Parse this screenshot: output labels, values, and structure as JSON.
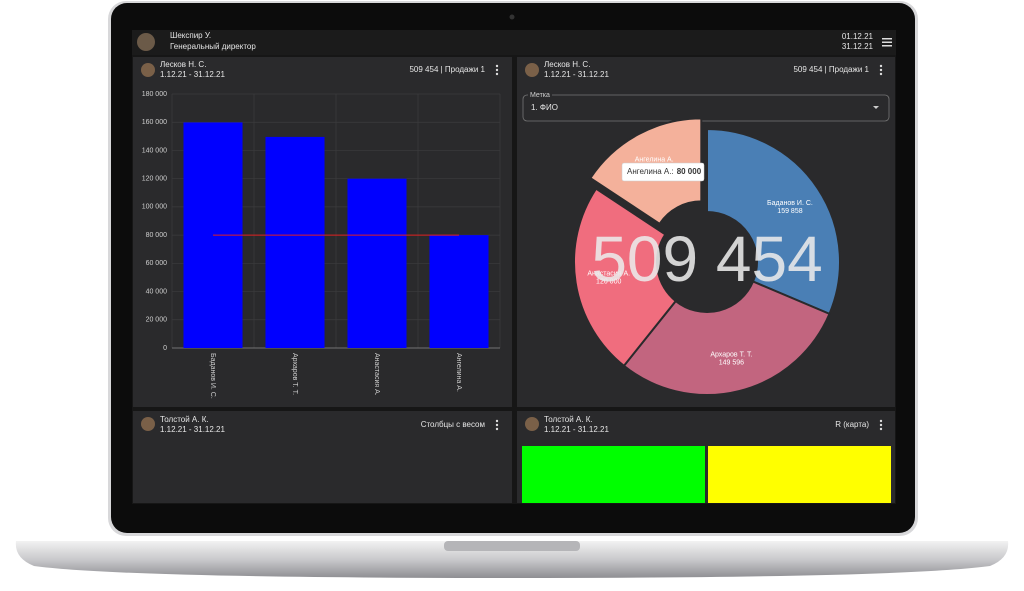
{
  "header": {
    "user": "Шекспир У.",
    "role": "Генеральный директор",
    "date_from": "01.12.21",
    "date_to": "31.12.21"
  },
  "panels": [
    {
      "author": "Лесков Н. С.",
      "period": "1.12.21 - 31.12.21",
      "title": "509 454 | Продажи 1",
      "chart": {
        "type": "bar",
        "categories": [
          "Баданов И. С.",
          "Архаров Т. Т.",
          "Анастасия А.",
          "Ангелина А."
        ],
        "values": [
          159858,
          149596,
          120000,
          80000
        ],
        "color": "#0000ff",
        "reference_line": 80000,
        "reference_color": "#e02020",
        "ylim": [
          0,
          180000
        ],
        "yticks": [
          0,
          {
            "value": 20000,
            "label": "20 000"
          },
          {
            "value": 40000,
            "label": "40 000"
          },
          {
            "value": 60000,
            "label": "60 000"
          },
          {
            "value": 80000,
            "label": "80 000"
          },
          {
            "value": 100000,
            "label": "100 000"
          },
          {
            "value": 120000,
            "label": "120 000"
          },
          {
            "value": 140000,
            "label": "140 000"
          },
          {
            "value": 160000,
            "label": "160 000"
          },
          {
            "value": 180000,
            "label": "180 000"
          }
        ],
        "grid": true
      }
    },
    {
      "author": "Лесков Н. С.",
      "period": "1.12.21 - 31.12.21",
      "title": "509 454 | Продажи 1",
      "select_label": "Метка",
      "select_value": "1. ФИО",
      "chart": {
        "type": "donut",
        "total_label": "509 454",
        "categories": [
          "Баданов И. С.",
          "Архаров Т. Т.",
          "Анастасия А.",
          "Ангелина А."
        ],
        "values": [
          159858,
          149596,
          120000,
          80000
        ],
        "value_labels": [
          "159 858",
          "149 596",
          "120 000",
          "80 000"
        ],
        "colors": [
          "#4a7fb5",
          "#c2657f",
          "#f06d7e",
          "#f4b19b"
        ],
        "exploded": 3,
        "tooltip": {
          "name": "Ангелина А.:",
          "value": "80 000"
        }
      }
    },
    {
      "author": "Толстой А. К.",
      "period": "1.12.21 - 31.12.21",
      "title": "Столбцы с весом"
    },
    {
      "author": "Толстой А. К.",
      "period": "1.12.21 - 31.12.21",
      "title": "R (карта)"
    }
  ]
}
